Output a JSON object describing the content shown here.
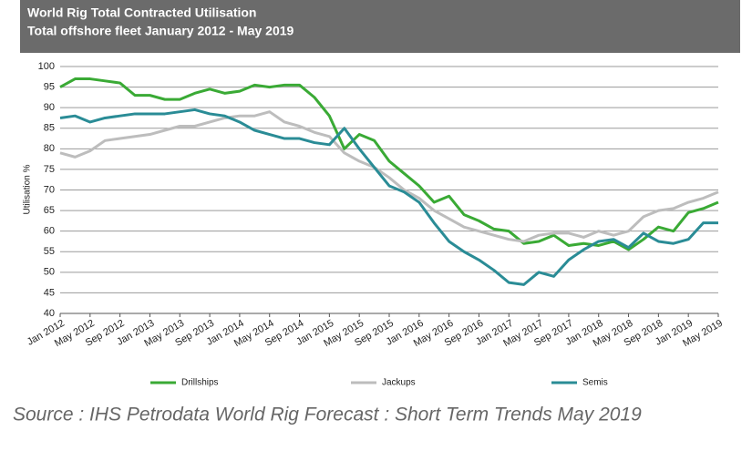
{
  "chart_data": {
    "type": "line",
    "title": "World Rig Total Contracted Utilisation",
    "subtitle": "Total offshore fleet January 2012 - May 2019",
    "y_label": "Utilisation %",
    "source": "Source : IHS Petrodata World Rig Forecast : Short Term Trends May 2019",
    "categories": [
      "Jan 2012",
      null,
      "May 2012",
      null,
      "Sep 2012",
      null,
      "Jan 2013",
      null,
      "May 2013",
      null,
      "Sep 2013",
      null,
      "Jan 2014",
      null,
      "May 2014",
      null,
      "Sep 2014",
      null,
      "Jan 2015",
      null,
      "May 2015",
      null,
      "Sep 2015",
      null,
      "Jan 2016",
      null,
      "May 2016",
      null,
      "Sep 2016",
      null,
      "Jan 2017",
      null,
      "May 2017",
      null,
      "Sep 2017",
      null,
      "Jan 2018",
      null,
      "May 2018",
      null,
      "Sep 2018",
      null,
      "Jan 2019",
      null,
      "May 2019"
    ],
    "series": [
      {
        "name": "Drillships",
        "color": "#3aaa35",
        "values": [
          95,
          97,
          97,
          96.5,
          96,
          93,
          93,
          92,
          92,
          93.5,
          94.5,
          93.5,
          94,
          95.5,
          95,
          95.5,
          95.5,
          92.5,
          88,
          80,
          83.5,
          82,
          77,
          74,
          71,
          67,
          68.5,
          64,
          62.5,
          60.5,
          60,
          57,
          57.5,
          59,
          56.5,
          57,
          56.5,
          57.5,
          55.5,
          58,
          61,
          60,
          64.5,
          65.5,
          67
        ]
      },
      {
        "name": "Jackups",
        "color": "#bdbdbd",
        "values": [
          79,
          78,
          79.5,
          82,
          82.5,
          83,
          83.5,
          84.5,
          85.5,
          85.5,
          86.5,
          87.5,
          88,
          88,
          89,
          86.5,
          85.5,
          84,
          83,
          79,
          77,
          75.5,
          73,
          70,
          68,
          65,
          63,
          61,
          60,
          59,
          58,
          57.5,
          59,
          59.5,
          59.5,
          58.5,
          60,
          59,
          60,
          63.5,
          65,
          65.5,
          67,
          68,
          69.5
        ]
      },
      {
        "name": "Semis",
        "color": "#2a8c96",
        "values": [
          87.5,
          88,
          86.5,
          87.5,
          88,
          88.5,
          88.5,
          88.5,
          89,
          89.5,
          88.5,
          88,
          86.5,
          84.5,
          83.5,
          82.5,
          82.5,
          81.5,
          81,
          85,
          80,
          75.5,
          71,
          69.5,
          67,
          62,
          57.5,
          55,
          53,
          50.5,
          47.5,
          47,
          50,
          49,
          53,
          55.5,
          57.5,
          58,
          56,
          59.5,
          57.5,
          57,
          58,
          62,
          62
        ]
      }
    ],
    "ylim": [
      40,
      100
    ],
    "yticks": [
      40,
      45,
      50,
      55,
      60,
      65,
      70,
      75,
      80,
      85,
      90,
      95,
      100
    ],
    "grid": true
  }
}
